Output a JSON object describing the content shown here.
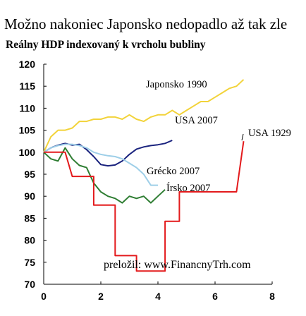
{
  "title": "Možno nakoniec Japonsko nedopadlo až tak zle",
  "subtitle": "Reálny HDP indexovaný k vrcholu bubliny",
  "credit": "preložil: www.FinancnyTrh.com",
  "chart_data": {
    "type": "line",
    "title": "Možno nakoniec Japonsko nedopadlo až tak zle",
    "subtitle": "Reálny HDP indexovaný k vrcholu bubliny",
    "xlabel": "",
    "ylabel": "",
    "xlim": [
      0,
      8
    ],
    "ylim": [
      70,
      120
    ],
    "xticks": [
      0,
      2,
      4,
      6,
      8
    ],
    "yticks": [
      70,
      75,
      80,
      85,
      90,
      95,
      100,
      105,
      110,
      115,
      120
    ],
    "grid": false,
    "legend": "none",
    "series": [
      {
        "name": "Japonsko 1990",
        "color": "#f2d33a",
        "x": [
          0,
          0.25,
          0.5,
          0.75,
          1,
          1.25,
          1.5,
          1.75,
          2,
          2.25,
          2.5,
          2.75,
          3,
          3.25,
          3.5,
          3.75,
          4,
          4.25,
          4.5,
          4.75,
          5,
          5.25,
          5.5,
          5.75,
          6,
          6.25,
          6.5,
          6.75,
          7
        ],
        "y": [
          100,
          103.5,
          105,
          105,
          105.5,
          107,
          107,
          107.5,
          107.5,
          108,
          108,
          107.5,
          108.5,
          107.5,
          107,
          108,
          108.5,
          108.5,
          109.5,
          108.5,
          109.5,
          110.5,
          111.5,
          111.5,
          112.5,
          113.5,
          114.5,
          115,
          116.5
        ]
      },
      {
        "name": "USA 2007",
        "color": "#1a237e",
        "x": [
          0,
          0.25,
          0.5,
          0.75,
          1,
          1.25,
          1.5,
          1.75,
          2,
          2.25,
          2.5,
          2.75,
          3,
          3.25,
          3.5,
          3.75,
          4,
          4.25,
          4.5
        ],
        "y": [
          100,
          101,
          101.6,
          102,
          101.6,
          101.8,
          100.6,
          99,
          97.2,
          96.9,
          97.1,
          98,
          99.5,
          100.7,
          101.2,
          101.5,
          101.7,
          102,
          102.7
        ]
      },
      {
        "name": "Grécko 2007",
        "color": "#9ecfe8",
        "x": [
          0,
          0.25,
          0.5,
          0.75,
          1,
          1.25,
          1.5,
          1.75,
          2,
          2.25,
          2.5,
          2.75,
          3,
          3.25,
          3.5,
          3.75,
          4
        ],
        "y": [
          100,
          101,
          101.5,
          101.8,
          101.8,
          101.5,
          101,
          100,
          99.5,
          99.2,
          99,
          98.5,
          97.5,
          96.5,
          95,
          92.5,
          92.5
        ]
      },
      {
        "name": "Írsko 2007",
        "color": "#2e7d32",
        "x": [
          0,
          0.25,
          0.5,
          0.75,
          1,
          1.25,
          1.5,
          1.75,
          2,
          2.25,
          2.5,
          2.75,
          3,
          3.25,
          3.5,
          3.75,
          4,
          4.25
        ],
        "y": [
          100,
          98.5,
          98,
          101,
          98.5,
          97,
          96.5,
          93,
          91,
          90,
          89.5,
          88.5,
          90,
          89.5,
          90,
          88.5,
          90,
          91.5
        ]
      },
      {
        "name": "USA 1929",
        "color": "#e31a1c",
        "x": [
          0,
          0.75,
          1,
          1.75,
          1.75,
          2.5,
          2.5,
          3.25,
          3.25,
          4.25,
          4.25,
          4.75,
          4.75,
          5.75,
          5.75,
          6.75,
          6.75,
          7
        ],
        "y": [
          100,
          100,
          94.5,
          94.5,
          88,
          88,
          76.5,
          76.5,
          73,
          73,
          84.3,
          84.3,
          91,
          91,
          91,
          91,
          91,
          102.5
        ]
      }
    ],
    "annotations": [
      {
        "text": "Japonsko 1990",
        "series": "Japonsko 1990"
      },
      {
        "text": "USA 2007",
        "series": "USA 2007"
      },
      {
        "text": "Grécko 2007",
        "series": "Grécko 2007"
      },
      {
        "text": "Írsko 2007",
        "series": "Írsko 2007"
      },
      {
        "text": "USA 1929",
        "series": "USA 1929"
      }
    ]
  }
}
